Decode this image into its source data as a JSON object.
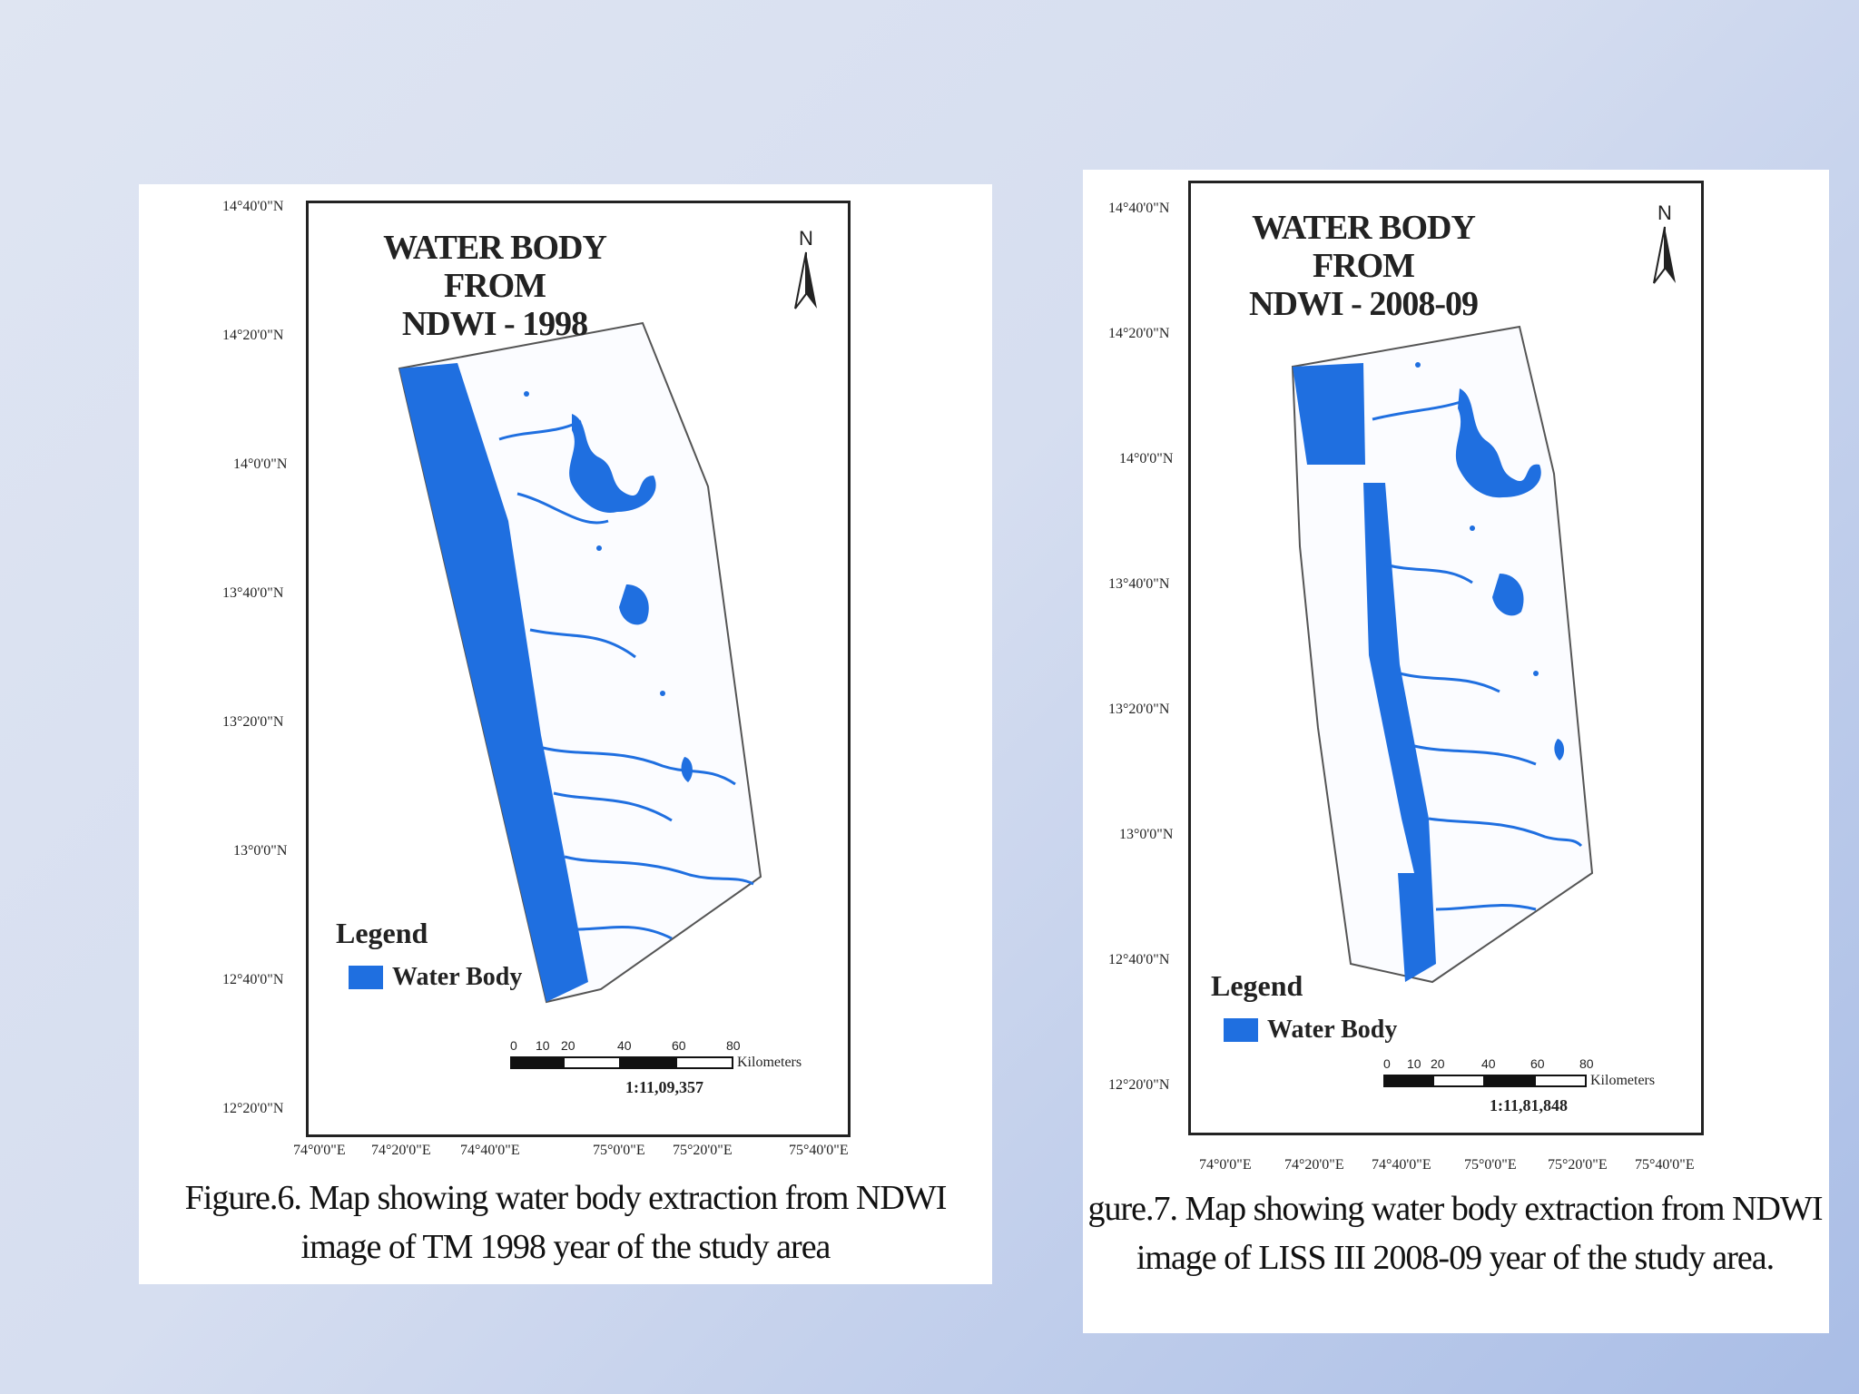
{
  "figures": [
    {
      "map_title_line1": "WATER BODY FROM",
      "map_title_line2": "NDWI - 1998",
      "north_label": "N",
      "legend_title": "Legend",
      "legend_item": "Water Body",
      "scale_ticks": [
        "0",
        "10",
        "20",
        "40",
        "60",
        "80"
      ],
      "scale_unit": "Kilometers",
      "scale_ratio": "1:11,09,357",
      "lat_labels": [
        "14°40'0\"N",
        "14°20'0\"N",
        "14°0'0\"N",
        "13°40'0\"N",
        "13°20'0\"N",
        "13°0'0\"N",
        "12°40'0\"N",
        "12°20'0\"N"
      ],
      "lon_labels": [
        "74°0'0\"E",
        "74°20'0\"E",
        "74°40'0\"E",
        "75°0'0\"E",
        "75°20'0\"E",
        "75°40'0\"E"
      ],
      "caption_line1": "Figure.6. Map showing water body extraction from NDWI",
      "caption_line2": "image of TM 1998 year of the study area"
    },
    {
      "map_title_line1": "WATER BODY FROM",
      "map_title_line2": "NDWI - 2008-09",
      "north_label": "N",
      "legend_title": "Legend",
      "legend_item": "Water Body",
      "scale_ticks": [
        "0",
        "10",
        "20",
        "40",
        "60",
        "80"
      ],
      "scale_unit": "Kilometers",
      "scale_ratio": "1:11,81,848",
      "lat_labels": [
        "14°40'0\"N",
        "14°20'0\"N",
        "14°0'0\"N",
        "13°40'0\"N",
        "13°20'0\"N",
        "13°0'0\"N",
        "12°40'0\"N",
        "12°20'0\"N"
      ],
      "lon_labels": [
        "74°0'0\"E",
        "74°20'0\"E",
        "74°40'0\"E",
        "75°0'0\"E",
        "75°20'0\"E",
        "75°40'0\"E"
      ],
      "caption_line1": "gure.7. Map showing water body extraction from NDWI",
      "caption_line2": "image of LISS III 2008-09 year of the study area."
    }
  ],
  "colors": {
    "water": "#1f6fe0",
    "frame": "#222222",
    "panel": "#ffffff"
  }
}
